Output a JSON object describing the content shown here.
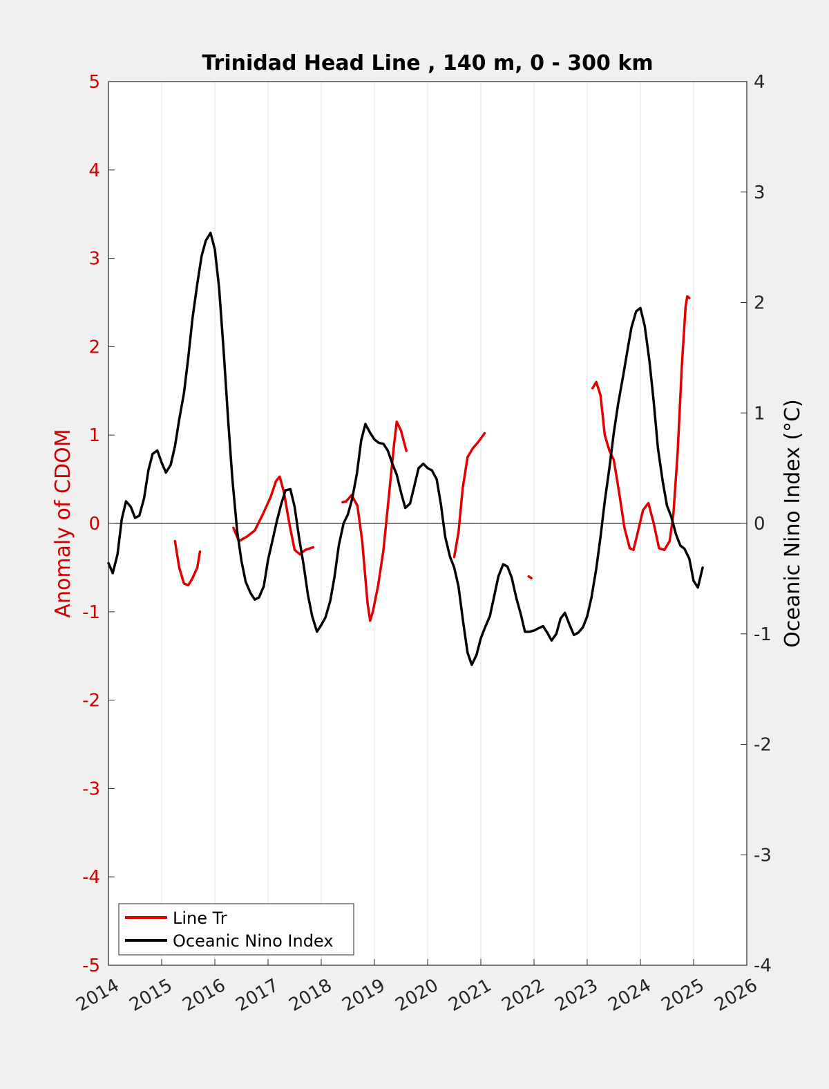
{
  "chart_data": {
    "type": "line",
    "title": "Trinidad Head Line , 140 m, 0 - 300 km",
    "xlabel": "",
    "ylabel_left": "Anomaly of CDOM",
    "ylabel_right": "Oceanic Nino Index (°C)",
    "xlim": [
      2014,
      2026
    ],
    "ylim_left": [
      -5,
      5
    ],
    "ylim_right": [
      -4,
      4
    ],
    "x_ticks": [
      "2014",
      "2015",
      "2016",
      "2017",
      "2018",
      "2019",
      "2020",
      "2021",
      "2022",
      "2023",
      "2024",
      "2025",
      "2026"
    ],
    "y_left_ticks": [
      "-5",
      "-4",
      "-3",
      "-2",
      "-1",
      "0",
      "1",
      "2",
      "3",
      "4",
      "5"
    ],
    "y_right_ticks": [
      "-4",
      "-3",
      "-2",
      "-1",
      "0",
      "1",
      "2",
      "3",
      "4"
    ],
    "grid": "vertical",
    "legend_position": "bottom-left",
    "colors": {
      "line_tr": "#e00000",
      "oni": "#000000",
      "left_axis": "#d00000"
    },
    "series": [
      {
        "name": "Line Tr",
        "axis": "left",
        "color": "#e00000",
        "segments": [
          [
            [
              2015.25,
              -0.2
            ],
            [
              2015.33,
              -0.5
            ],
            [
              2015.42,
              -0.68
            ],
            [
              2015.5,
              -0.7
            ],
            [
              2015.58,
              -0.62
            ],
            [
              2015.67,
              -0.5
            ],
            [
              2015.72,
              -0.32
            ]
          ],
          [
            [
              2016.35,
              -0.05
            ],
            [
              2016.45,
              -0.2
            ],
            [
              2016.6,
              -0.15
            ],
            [
              2016.75,
              -0.08
            ],
            [
              2016.9,
              0.1
            ],
            [
              2017.05,
              0.3
            ],
            [
              2017.15,
              0.48
            ],
            [
              2017.22,
              0.53
            ],
            [
              2017.3,
              0.35
            ],
            [
              2017.4,
              0.0
            ],
            [
              2017.5,
              -0.3
            ],
            [
              2017.6,
              -0.35
            ],
            [
              2017.7,
              -0.3
            ],
            [
              2017.85,
              -0.27
            ]
          ],
          [
            [
              2018.4,
              0.24
            ],
            [
              2018.47,
              0.25
            ],
            [
              2018.57,
              0.32
            ],
            [
              2018.68,
              0.2
            ],
            [
              2018.77,
              -0.2
            ],
            [
              2018.87,
              -0.9
            ],
            [
              2018.92,
              -1.1
            ],
            [
              2018.97,
              -1.0
            ],
            [
              2019.07,
              -0.7
            ],
            [
              2019.17,
              -0.3
            ],
            [
              2019.27,
              0.3
            ],
            [
              2019.37,
              0.9
            ],
            [
              2019.42,
              1.15
            ],
            [
              2019.5,
              1.05
            ],
            [
              2019.6,
              0.82
            ]
          ],
          [
            [
              2020.5,
              -0.38
            ],
            [
              2020.58,
              -0.1
            ],
            [
              2020.66,
              0.4
            ],
            [
              2020.75,
              0.75
            ],
            [
              2020.85,
              0.85
            ],
            [
              2020.95,
              0.92
            ],
            [
              2021.07,
              1.02
            ]
          ],
          [
            [
              2021.9,
              -0.6
            ],
            [
              2021.95,
              -0.62
            ]
          ],
          [
            [
              2023.1,
              1.53
            ],
            [
              2023.17,
              1.6
            ],
            [
              2023.25,
              1.45
            ],
            [
              2023.33,
              1.0
            ],
            [
              2023.42,
              0.82
            ],
            [
              2023.5,
              0.72
            ],
            [
              2023.6,
              0.35
            ],
            [
              2023.7,
              -0.05
            ],
            [
              2023.8,
              -0.28
            ],
            [
              2023.87,
              -0.3
            ],
            [
              2023.95,
              -0.1
            ],
            [
              2024.05,
              0.15
            ],
            [
              2024.15,
              0.23
            ],
            [
              2024.25,
              0.0
            ],
            [
              2024.35,
              -0.28
            ],
            [
              2024.45,
              -0.3
            ],
            [
              2024.55,
              -0.2
            ],
            [
              2024.62,
              0.1
            ],
            [
              2024.7,
              0.8
            ],
            [
              2024.78,
              1.8
            ],
            [
              2024.85,
              2.45
            ],
            [
              2024.88,
              2.57
            ],
            [
              2024.92,
              2.55
            ]
          ]
        ]
      },
      {
        "name": "Oceanic Nino Index",
        "axis": "right",
        "color": "#000000",
        "segments": [
          [
            [
              2014.0,
              -0.36
            ],
            [
              2014.08,
              -0.45
            ],
            [
              2014.17,
              -0.28
            ],
            [
              2014.25,
              0.04
            ],
            [
              2014.33,
              0.2
            ],
            [
              2014.42,
              0.15
            ],
            [
              2014.5,
              0.05
            ],
            [
              2014.58,
              0.07
            ],
            [
              2014.67,
              0.23
            ],
            [
              2014.75,
              0.48
            ],
            [
              2014.83,
              0.63
            ],
            [
              2014.92,
              0.66
            ],
            [
              2015.0,
              0.55
            ],
            [
              2015.08,
              0.46
            ],
            [
              2015.17,
              0.53
            ],
            [
              2015.25,
              0.7
            ],
            [
              2015.33,
              0.94
            ],
            [
              2015.42,
              1.18
            ],
            [
              2015.5,
              1.5
            ],
            [
              2015.58,
              1.86
            ],
            [
              2015.67,
              2.17
            ],
            [
              2015.75,
              2.42
            ],
            [
              2015.83,
              2.56
            ],
            [
              2015.92,
              2.63
            ],
            [
              2016.0,
              2.48
            ],
            [
              2016.08,
              2.13
            ],
            [
              2016.17,
              1.53
            ],
            [
              2016.25,
              0.93
            ],
            [
              2016.33,
              0.4
            ],
            [
              2016.42,
              -0.07
            ],
            [
              2016.5,
              -0.34
            ],
            [
              2016.58,
              -0.53
            ],
            [
              2016.67,
              -0.63
            ],
            [
              2016.75,
              -0.69
            ],
            [
              2016.83,
              -0.67
            ],
            [
              2016.92,
              -0.57
            ],
            [
              2017.0,
              -0.33
            ],
            [
              2017.08,
              -0.16
            ],
            [
              2017.17,
              0.03
            ],
            [
              2017.25,
              0.18
            ],
            [
              2017.33,
              0.3
            ],
            [
              2017.42,
              0.31
            ],
            [
              2017.5,
              0.15
            ],
            [
              2017.58,
              -0.12
            ],
            [
              2017.67,
              -0.38
            ],
            [
              2017.75,
              -0.65
            ],
            [
              2017.83,
              -0.84
            ],
            [
              2017.92,
              -0.98
            ],
            [
              2018.0,
              -0.92
            ],
            [
              2018.08,
              -0.85
            ],
            [
              2018.17,
              -0.7
            ],
            [
              2018.25,
              -0.48
            ],
            [
              2018.33,
              -0.2
            ],
            [
              2018.42,
              0.0
            ],
            [
              2018.5,
              0.08
            ],
            [
              2018.58,
              0.22
            ],
            [
              2018.67,
              0.45
            ],
            [
              2018.75,
              0.75
            ],
            [
              2018.83,
              0.9
            ],
            [
              2018.92,
              0.82
            ],
            [
              2019.0,
              0.76
            ],
            [
              2019.08,
              0.73
            ],
            [
              2019.17,
              0.72
            ],
            [
              2019.25,
              0.66
            ],
            [
              2019.33,
              0.55
            ],
            [
              2019.42,
              0.44
            ],
            [
              2019.5,
              0.28
            ],
            [
              2019.58,
              0.14
            ],
            [
              2019.67,
              0.18
            ],
            [
              2019.75,
              0.34
            ],
            [
              2019.83,
              0.5
            ],
            [
              2019.92,
              0.54
            ],
            [
              2020.0,
              0.5
            ],
            [
              2020.08,
              0.48
            ],
            [
              2020.17,
              0.4
            ],
            [
              2020.25,
              0.17
            ],
            [
              2020.33,
              -0.12
            ],
            [
              2020.42,
              -0.3
            ],
            [
              2020.5,
              -0.4
            ],
            [
              2020.58,
              -0.57
            ],
            [
              2020.67,
              -0.9
            ],
            [
              2020.75,
              -1.17
            ],
            [
              2020.83,
              -1.28
            ],
            [
              2020.92,
              -1.19
            ],
            [
              2021.0,
              -1.04
            ],
            [
              2021.08,
              -0.94
            ],
            [
              2021.17,
              -0.84
            ],
            [
              2021.25,
              -0.66
            ],
            [
              2021.33,
              -0.48
            ],
            [
              2021.42,
              -0.37
            ],
            [
              2021.5,
              -0.39
            ],
            [
              2021.58,
              -0.49
            ],
            [
              2021.67,
              -0.68
            ],
            [
              2021.75,
              -0.82
            ],
            [
              2021.83,
              -0.98
            ],
            [
              2021.92,
              -0.98
            ],
            [
              2022.0,
              -0.97
            ],
            [
              2022.08,
              -0.95
            ],
            [
              2022.17,
              -0.93
            ],
            [
              2022.25,
              -0.99
            ],
            [
              2022.33,
              -1.06
            ],
            [
              2022.42,
              -1.0
            ],
            [
              2022.5,
              -0.86
            ],
            [
              2022.58,
              -0.81
            ],
            [
              2022.67,
              -0.92
            ],
            [
              2022.75,
              -1.01
            ],
            [
              2022.83,
              -0.99
            ],
            [
              2022.92,
              -0.94
            ],
            [
              2023.0,
              -0.84
            ],
            [
              2023.08,
              -0.67
            ],
            [
              2023.17,
              -0.41
            ],
            [
              2023.25,
              -0.12
            ],
            [
              2023.33,
              0.2
            ],
            [
              2023.42,
              0.51
            ],
            [
              2023.5,
              0.82
            ],
            [
              2023.58,
              1.08
            ],
            [
              2023.67,
              1.32
            ],
            [
              2023.75,
              1.55
            ],
            [
              2023.83,
              1.77
            ],
            [
              2023.92,
              1.92
            ],
            [
              2024.0,
              1.95
            ],
            [
              2024.08,
              1.79
            ],
            [
              2024.17,
              1.47
            ],
            [
              2024.25,
              1.1
            ],
            [
              2024.33,
              0.68
            ],
            [
              2024.42,
              0.38
            ],
            [
              2024.5,
              0.16
            ],
            [
              2024.58,
              0.06
            ],
            [
              2024.67,
              -0.1
            ],
            [
              2024.75,
              -0.2
            ],
            [
              2024.83,
              -0.23
            ],
            [
              2024.92,
              -0.32
            ],
            [
              2025.0,
              -0.52
            ],
            [
              2025.08,
              -0.58
            ],
            [
              2025.17,
              -0.4
            ]
          ]
        ]
      }
    ]
  }
}
